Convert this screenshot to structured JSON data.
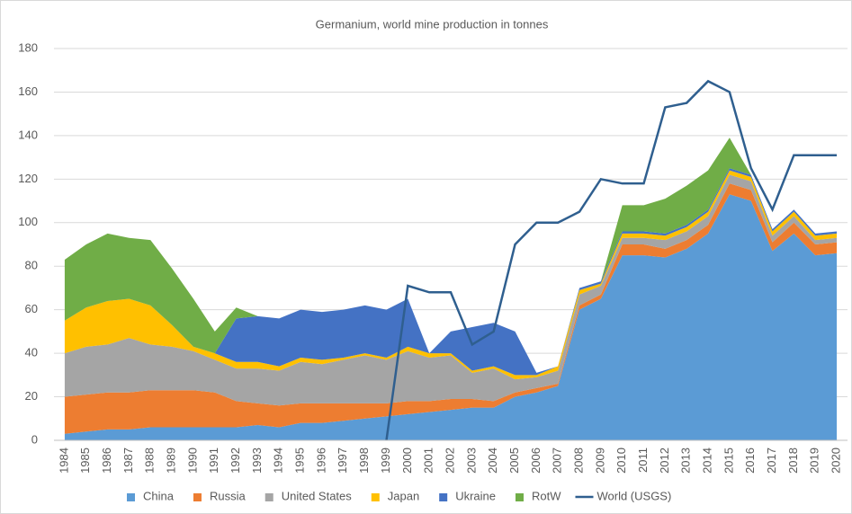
{
  "chart_data": {
    "type": "stacked_area_line",
    "title": "Germanium, world mine production in tonnes",
    "categories": [
      "1984",
      "1985",
      "1986",
      "1987",
      "1988",
      "1989",
      "1990",
      "1991",
      "1992",
      "1993",
      "1994",
      "1995",
      "1996",
      "1997",
      "1998",
      "1999",
      "2000",
      "2001",
      "2002",
      "2003",
      "2004",
      "2005",
      "2006",
      "2007",
      "2008",
      "2009",
      "2010",
      "2011",
      "2012",
      "2013",
      "2014",
      "2015",
      "2016",
      "2017",
      "2018",
      "2019",
      "2020"
    ],
    "series": [
      {
        "name": "China",
        "type": "area",
        "color": "#5b9bd5",
        "values": [
          3,
          4,
          5,
          5,
          6,
          6,
          6,
          6,
          6,
          7,
          6,
          8,
          8,
          9,
          10,
          11,
          12,
          13,
          14,
          15,
          15,
          20,
          22,
          25,
          60,
          65,
          85,
          85,
          84,
          88,
          95,
          113,
          110,
          87,
          95,
          85,
          86
        ]
      },
      {
        "name": "Russia",
        "type": "area",
        "color": "#ed7d31",
        "values": [
          17,
          17,
          17,
          17,
          17,
          17,
          17,
          16,
          12,
          10,
          10,
          9,
          9,
          8,
          7,
          6,
          6,
          5,
          5,
          4,
          3,
          2,
          2,
          1,
          2,
          2,
          5,
          5,
          4,
          4,
          4,
          5,
          5,
          4,
          5,
          5,
          5
        ]
      },
      {
        "name": "United States",
        "type": "area",
        "color": "#a5a5a5",
        "values": [
          20,
          22,
          22,
          25,
          21,
          20,
          18,
          15,
          15,
          16,
          16,
          19,
          18,
          20,
          22,
          20,
          23,
          20,
          20,
          12,
          15,
          6,
          5,
          6,
          5,
          4,
          3,
          3,
          4,
          4,
          4,
          4,
          4,
          3,
          3,
          2,
          2
        ]
      },
      {
        "name": "Japan",
        "type": "area",
        "color": "#ffc000",
        "values": [
          15,
          18,
          20,
          18,
          18,
          10,
          2,
          3,
          3,
          3,
          2,
          2,
          2,
          1,
          1,
          1,
          2,
          2,
          1,
          1,
          1,
          2,
          1,
          2,
          2,
          1,
          2,
          2,
          2,
          2,
          2,
          2,
          2,
          2,
          2,
          2,
          2
        ]
      },
      {
        "name": "Ukraine",
        "type": "area",
        "color": "#4472c4",
        "values": [
          0,
          0,
          0,
          0,
          0,
          0,
          0,
          0,
          20,
          21,
          22,
          22,
          22,
          22,
          22,
          22,
          22,
          0,
          10,
          20,
          20,
          20,
          1,
          0,
          1,
          1,
          1,
          1,
          1,
          1,
          1,
          1,
          1,
          1,
          1,
          1,
          1
        ]
      },
      {
        "name": "RotW",
        "type": "area",
        "color": "#70ad47",
        "values": [
          28,
          29,
          31,
          28,
          30,
          26,
          22,
          10,
          5,
          0,
          0,
          0,
          0,
          0,
          0,
          0,
          0,
          0,
          0,
          0,
          0,
          0,
          0,
          0,
          0,
          0,
          12,
          12,
          16,
          18,
          18,
          14,
          0,
          0,
          0,
          0,
          0
        ]
      },
      {
        "name": "World (USGS)",
        "type": "line",
        "color": "#2f5f8f",
        "values": [
          null,
          null,
          null,
          null,
          null,
          null,
          null,
          null,
          null,
          null,
          null,
          null,
          null,
          null,
          null,
          0,
          71,
          68,
          68,
          44,
          50,
          90,
          100,
          100,
          105,
          120,
          118,
          118,
          153,
          155,
          165,
          160,
          125,
          106,
          131,
          131,
          131
        ]
      }
    ],
    "ylim": [
      0,
      180
    ],
    "yticks": [
      0,
      20,
      40,
      60,
      80,
      100,
      120,
      140,
      160,
      180
    ],
    "grid": true,
    "legend": "bottom"
  }
}
